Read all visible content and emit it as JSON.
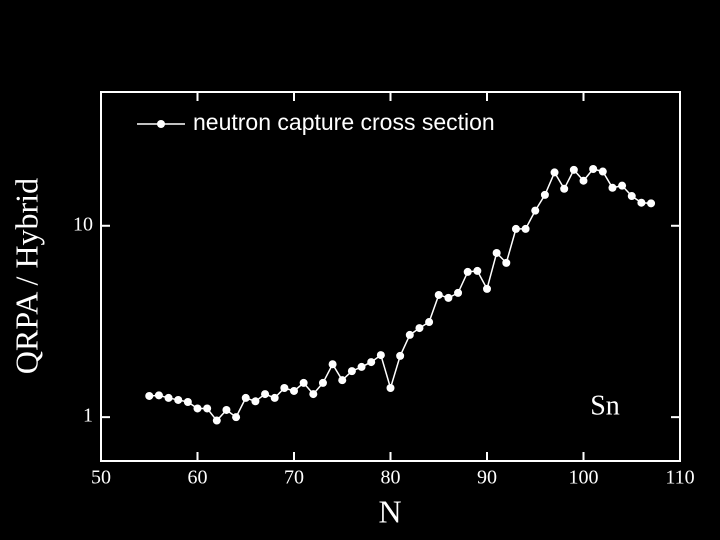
{
  "chart_data": {
    "type": "line",
    "xlabel": "N",
    "ylabel": "QRPA / Hybrid",
    "annotation": "Sn",
    "log_y": true,
    "legend": "top-left",
    "x": [
      55,
      56,
      57,
      58,
      59,
      60,
      61,
      62,
      63,
      64,
      65,
      66,
      67,
      68,
      69,
      70,
      71,
      72,
      73,
      74,
      75,
      76,
      77,
      78,
      79,
      80,
      81,
      82,
      83,
      84,
      85,
      86,
      87,
      88,
      89,
      90,
      91,
      92,
      93,
      94,
      95,
      96,
      97,
      98,
      99,
      100,
      101,
      102,
      103,
      104,
      105,
      106,
      107
    ],
    "series": [
      {
        "name": "neutron capture cross section",
        "color": "#ffffff",
        "values": [
          1.29,
          1.3,
          1.26,
          1.23,
          1.2,
          1.11,
          1.11,
          0.96,
          1.09,
          1.0,
          1.26,
          1.21,
          1.32,
          1.26,
          1.42,
          1.37,
          1.51,
          1.32,
          1.51,
          1.89,
          1.56,
          1.74,
          1.83,
          1.94,
          2.11,
          1.42,
          2.09,
          2.69,
          2.92,
          3.14,
          4.35,
          4.2,
          4.46,
          5.74,
          5.81,
          4.68,
          7.21,
          6.4,
          9.63,
          9.63,
          12.0,
          14.5,
          19.0,
          15.6,
          19.6,
          17.2,
          19.8,
          19.2,
          15.8,
          16.2,
          14.3,
          13.2,
          13.1
        ]
      }
    ],
    "xlim": [
      50,
      110
    ],
    "xticks": [
      50,
      60,
      70,
      80,
      90,
      100,
      110
    ],
    "ylim": [
      0.59,
      50
    ],
    "yticks": [
      1,
      10
    ]
  }
}
